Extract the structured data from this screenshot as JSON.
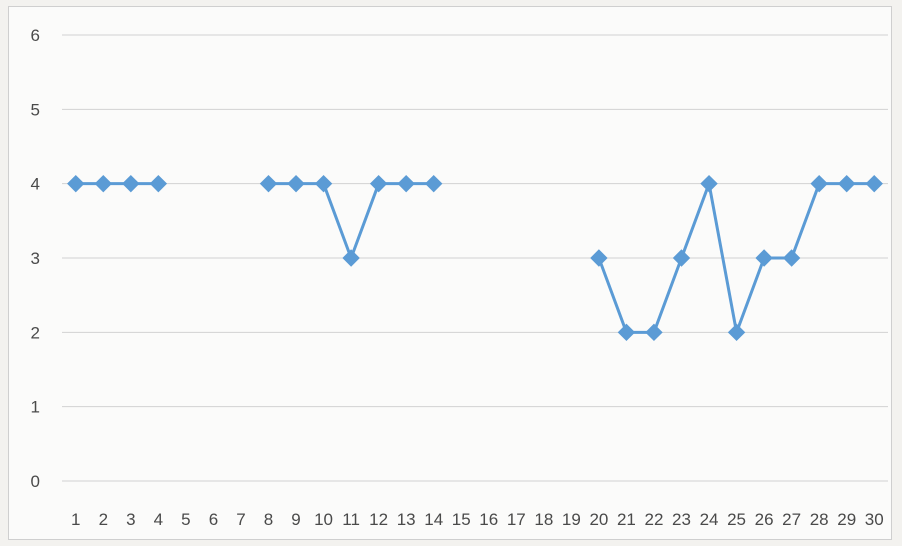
{
  "chart_data": {
    "type": "line",
    "title": "",
    "xlabel": "",
    "ylabel": "",
    "categories": [
      "1",
      "2",
      "3",
      "4",
      "5",
      "6",
      "7",
      "8",
      "9",
      "10",
      "11",
      "12",
      "13",
      "14",
      "15",
      "16",
      "17",
      "18",
      "19",
      "20",
      "21",
      "22",
      "23",
      "24",
      "25",
      "26",
      "27",
      "28",
      "29",
      "30"
    ],
    "series": [
      {
        "values": [
          4,
          4,
          4,
          4,
          null,
          null,
          null,
          4,
          4,
          4,
          3,
          4,
          4,
          4,
          null,
          null,
          null,
          null,
          null,
          3,
          2,
          2,
          3,
          4,
          2,
          3,
          3,
          4,
          4,
          4
        ],
        "color": "#5b9bd5",
        "marker": "diamond"
      }
    ],
    "ylim": [
      0,
      6
    ],
    "yticks": [
      "0",
      "1",
      "2",
      "3",
      "4",
      "5",
      "6"
    ],
    "grid": true,
    "legend": "none"
  }
}
